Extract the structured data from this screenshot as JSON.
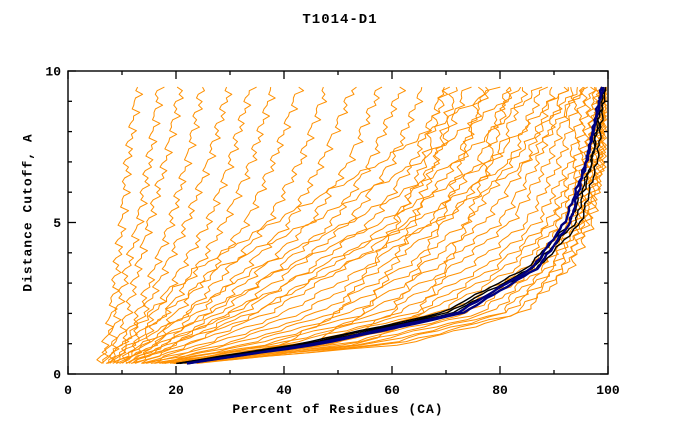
{
  "chart_data": {
    "type": "line",
    "title": "T1014-D1",
    "xlabel": "Percent of Residues (CA)",
    "ylabel": "Distance Cutoff, A",
    "xlim": [
      0,
      100
    ],
    "ylim": [
      0,
      10
    ],
    "x_major_ticks": [
      0,
      20,
      40,
      60,
      80,
      100
    ],
    "x_minor_ticks": [
      10,
      30,
      50,
      70,
      90
    ],
    "y_major_ticks": [
      0,
      5,
      10
    ],
    "y_minor_ticks": [
      1,
      2,
      3,
      4,
      6,
      7,
      8,
      9
    ],
    "legend": "none",
    "grid": false,
    "colors": {
      "orange": "#ff9000",
      "black": "#000000",
      "navy": "#000080"
    },
    "anchor_cutoffs": [
      0.35,
      1,
      2,
      3.5,
      5,
      7,
      9.55
    ],
    "series": [
      {
        "group": "orange",
        "percents": [
          6,
          7,
          8,
          9,
          10,
          11,
          13
        ]
      },
      {
        "group": "orange",
        "percents": [
          6,
          8,
          9,
          11,
          13,
          15,
          17
        ]
      },
      {
        "group": "orange",
        "percents": [
          7,
          9,
          11,
          13,
          15,
          18,
          21
        ]
      },
      {
        "group": "orange",
        "percents": [
          7,
          10,
          13,
          16,
          19,
          22,
          25
        ]
      },
      {
        "group": "orange",
        "percents": [
          8,
          11,
          14,
          18,
          22,
          26,
          30
        ]
      },
      {
        "group": "orange",
        "percents": [
          8,
          12,
          16,
          21,
          26,
          30,
          34
        ]
      },
      {
        "group": "orange",
        "percents": [
          9,
          13,
          18,
          24,
          29,
          34,
          38
        ]
      },
      {
        "group": "orange",
        "percents": [
          9,
          14,
          20,
          27,
          33,
          38,
          43
        ]
      },
      {
        "group": "orange",
        "percents": [
          10,
          15,
          22,
          30,
          37,
          43,
          48
        ]
      },
      {
        "group": "orange",
        "percents": [
          10,
          16,
          24,
          33,
          41,
          47,
          53
        ]
      },
      {
        "group": "orange",
        "percents": [
          11,
          17,
          26,
          36,
          45,
          52,
          58
        ]
      },
      {
        "group": "orange",
        "percents": [
          11,
          18,
          28,
          39,
          49,
          56,
          62
        ]
      },
      {
        "group": "orange",
        "percents": [
          12,
          19,
          30,
          42,
          52,
          60,
          66
        ]
      },
      {
        "group": "orange",
        "percents": [
          12,
          20,
          32,
          45,
          56,
          64,
          70
        ]
      },
      {
        "group": "orange",
        "percents": [
          13,
          22,
          35,
          48,
          60,
          68,
          74
        ]
      },
      {
        "group": "orange",
        "percents": [
          13,
          23,
          37,
          51,
          63,
          72,
          78
        ]
      },
      {
        "group": "orange",
        "percents": [
          14,
          25,
          40,
          55,
          67,
          76,
          82
        ]
      },
      {
        "group": "orange",
        "percents": [
          14,
          27,
          43,
          58,
          70,
          79,
          85
        ]
      },
      {
        "group": "orange",
        "percents": [
          15,
          29,
          46,
          62,
          74,
          82,
          88
        ]
      },
      {
        "group": "orange",
        "percents": [
          15,
          31,
          49,
          65,
          77,
          85,
          90
        ]
      },
      {
        "group": "orange",
        "percents": [
          16,
          33,
          52,
          68,
          80,
          87,
          92
        ]
      },
      {
        "group": "orange",
        "percents": [
          16,
          35,
          55,
          71,
          82,
          89,
          94
        ]
      },
      {
        "group": "orange",
        "percents": [
          17,
          37,
          58,
          74,
          85,
          91,
          95
        ]
      },
      {
        "group": "orange",
        "percents": [
          17,
          39,
          61,
          77,
          87,
          93,
          96
        ]
      },
      {
        "group": "orange",
        "percents": [
          18,
          41,
          64,
          79,
          89,
          94,
          97
        ]
      },
      {
        "group": "orange",
        "percents": [
          18,
          43,
          66,
          81,
          90,
          95,
          98
        ]
      },
      {
        "group": "orange",
        "percents": [
          19,
          45,
          68,
          83,
          91,
          96,
          98
        ]
      },
      {
        "group": "orange",
        "percents": [
          19,
          47,
          70,
          85,
          92,
          96,
          99
        ]
      },
      {
        "group": "orange",
        "percents": [
          20,
          49,
          72,
          86,
          93,
          97,
          99
        ]
      },
      {
        "group": "orange",
        "percents": [
          20,
          51,
          74,
          87,
          94,
          97,
          99
        ]
      },
      {
        "group": "orange",
        "percents": [
          21,
          53,
          76,
          88,
          94,
          98,
          99.5
        ]
      },
      {
        "group": "orange",
        "percents": [
          21,
          55,
          78,
          89,
          95,
          98,
          99.5
        ]
      },
      {
        "group": "orange",
        "percents": [
          22,
          57,
          80,
          90,
          95,
          98,
          99.5
        ]
      },
      {
        "group": "orange",
        "percents": [
          22,
          59,
          81,
          91,
          96,
          99,
          99.5
        ]
      },
      {
        "group": "orange",
        "percents": [
          23,
          61,
          83,
          92,
          96,
          99,
          99.5
        ]
      },
      {
        "group": "orange",
        "percents": [
          23,
          63,
          84,
          93,
          97,
          99,
          99.5
        ]
      },
      {
        "group": "orange",
        "percents": [
          9,
          14,
          22,
          35,
          52,
          72,
          88
        ]
      },
      {
        "group": "orange",
        "percents": [
          10,
          16,
          26,
          40,
          58,
          78,
          93
        ]
      },
      {
        "group": "orange",
        "percents": [
          8,
          12,
          18,
          28,
          45,
          65,
          85
        ]
      },
      {
        "group": "orange",
        "percents": [
          11,
          18,
          30,
          46,
          64,
          82,
          95
        ]
      },
      {
        "group": "orange",
        "percents": [
          7,
          10,
          15,
          24,
          38,
          58,
          80
        ]
      },
      {
        "group": "orange",
        "percents": [
          12,
          20,
          34,
          50,
          68,
          85,
          96
        ]
      },
      {
        "group": "orange",
        "percents": [
          20,
          45,
          55,
          60,
          64,
          68,
          72
        ]
      },
      {
        "group": "orange",
        "percents": [
          22,
          50,
          60,
          65,
          69,
          73,
          77
        ]
      },
      {
        "group": "orange",
        "percents": [
          18,
          40,
          50,
          56,
          61,
          66,
          70
        ]
      },
      {
        "group": "orange",
        "percents": [
          24,
          55,
          65,
          70,
          74,
          78,
          82
        ]
      },
      {
        "group": "black",
        "percents": [
          20,
          44,
          70,
          86,
          94,
          97,
          99.5
        ]
      },
      {
        "group": "black",
        "percents": [
          21,
          45,
          71,
          87,
          95,
          98,
          99.5
        ]
      },
      {
        "group": "black",
        "percents": [
          20,
          43,
          69,
          85,
          93,
          97,
          99
        ]
      },
      {
        "group": "navy",
        "percents": [
          22,
          46,
          72,
          86,
          92,
          96,
          99
        ]
      },
      {
        "group": "navy",
        "percents": [
          22,
          47,
          73,
          87,
          93,
          96,
          99.2
        ]
      }
    ]
  }
}
